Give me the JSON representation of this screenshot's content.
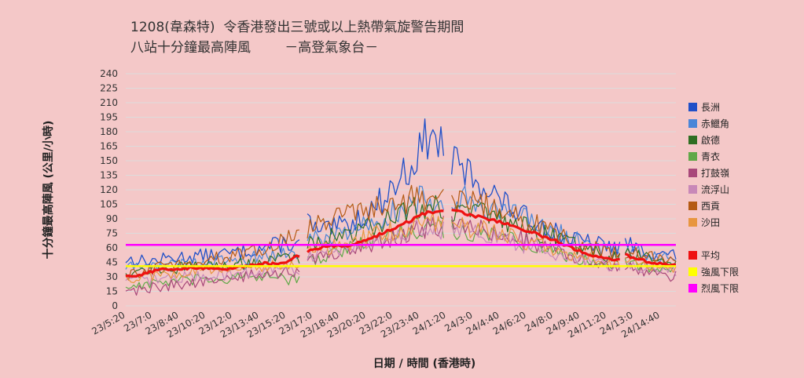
{
  "title_line1": "1208(韋森特)  令香港發出三號或以上熱帶氣旋警告期間",
  "title_line2": "八站十分鐘最高陣風        －高登氣象台－",
  "chart_data": {
    "type": "line",
    "xlabel": "日期 / 時間 (香港時)",
    "ylabel": "十分鐘最高陣風 (公里/小時)",
    "ylim": [
      0,
      240
    ],
    "yticks": [
      0,
      15,
      30,
      45,
      60,
      75,
      90,
      105,
      120,
      135,
      150,
      165,
      180,
      195,
      210,
      225,
      240
    ],
    "xlim": [
      0,
      34.3
    ],
    "xticks": [
      {
        "label": "23/5:20",
        "t": 0
      },
      {
        "label": "23/7:0",
        "t": 1.667
      },
      {
        "label": "23/8:40",
        "t": 3.333
      },
      {
        "label": "23/10:20",
        "t": 5
      },
      {
        "label": "23/12:0",
        "t": 6.667
      },
      {
        "label": "23/13:40",
        "t": 8.333
      },
      {
        "label": "23/15:20",
        "t": 10
      },
      {
        "label": "23/17:0",
        "t": 11.667
      },
      {
        "label": "23/18:40",
        "t": 13.333
      },
      {
        "label": "23/20:20",
        "t": 15
      },
      {
        "label": "23/22:0",
        "t": 16.667
      },
      {
        "label": "23/23:40",
        "t": 18.333
      },
      {
        "label": "24/1:20",
        "t": 20
      },
      {
        "label": "24/3:0",
        "t": 21.667
      },
      {
        "label": "24/4:40",
        "t": 23.333
      },
      {
        "label": "24/6:20",
        "t": 25
      },
      {
        "label": "24/8:0",
        "t": 26.667
      },
      {
        "label": "24/9:40",
        "t": 28.333
      },
      {
        "label": "24/11:20",
        "t": 30
      },
      {
        "label": "24/13:0",
        "t": 31.667
      },
      {
        "label": "24/14:40",
        "t": 33.333
      }
    ],
    "gaps": [
      [
        10.9,
        11.2
      ],
      [
        19.9,
        20.15
      ],
      [
        30.9,
        31.1
      ]
    ],
    "series": [
      {
        "name": "長洲",
        "color": "#2050c8",
        "width": 1.3,
        "points": [
          [
            0,
            48
          ],
          [
            1.5,
            46
          ],
          [
            3,
            50
          ],
          [
            5,
            52
          ],
          [
            7,
            55
          ],
          [
            8.5,
            60
          ],
          [
            10,
            65
          ],
          [
            11,
            62
          ],
          [
            11.2,
            92
          ],
          [
            12,
            75
          ],
          [
            13,
            80
          ],
          [
            14,
            85
          ],
          [
            15,
            95
          ],
          [
            16,
            110
          ],
          [
            17,
            130
          ],
          [
            18,
            150
          ],
          [
            18.8,
            175
          ],
          [
            19.3,
            170
          ],
          [
            19.9,
            165
          ],
          [
            20.2,
            150
          ],
          [
            21,
            140
          ],
          [
            22,
            130
          ],
          [
            23,
            115
          ],
          [
            24,
            100
          ],
          [
            25,
            90
          ],
          [
            26,
            85
          ],
          [
            27,
            75
          ],
          [
            28,
            68
          ],
          [
            29,
            65
          ],
          [
            30,
            62
          ],
          [
            30.9,
            60
          ],
          [
            31.1,
            66
          ],
          [
            32,
            58
          ],
          [
            33,
            55
          ],
          [
            34.3,
            52
          ]
        ]
      },
      {
        "name": "赤鱲角",
        "color": "#4a86d8",
        "width": 1.2,
        "points": [
          [
            0,
            40
          ],
          [
            2,
            42
          ],
          [
            4,
            44
          ],
          [
            6,
            46
          ],
          [
            8,
            50
          ],
          [
            10,
            55
          ],
          [
            11,
            52
          ],
          [
            11.2,
            68
          ],
          [
            13,
            72
          ],
          [
            15,
            85
          ],
          [
            17,
            100
          ],
          [
            18.5,
            110
          ],
          [
            19.9,
            108
          ],
          [
            20.2,
            115
          ],
          [
            21.5,
            110
          ],
          [
            23,
            100
          ],
          [
            25,
            88
          ],
          [
            27,
            75
          ],
          [
            29,
            62
          ],
          [
            30.9,
            55
          ],
          [
            31.1,
            60
          ],
          [
            33,
            52
          ],
          [
            34.3,
            48
          ]
        ]
      },
      {
        "name": "啟德",
        "color": "#2f6e22",
        "width": 1.2,
        "points": [
          [
            0,
            35
          ],
          [
            2,
            38
          ],
          [
            4,
            40
          ],
          [
            6,
            42
          ],
          [
            8,
            45
          ],
          [
            10,
            50
          ],
          [
            11,
            48
          ],
          [
            11.2,
            65
          ],
          [
            13,
            72
          ],
          [
            15,
            80
          ],
          [
            17,
            95
          ],
          [
            18.5,
            105
          ],
          [
            19.9,
            100
          ],
          [
            20.2,
            100
          ],
          [
            22,
            95
          ],
          [
            24,
            85
          ],
          [
            26,
            75
          ],
          [
            28,
            62
          ],
          [
            30,
            52
          ],
          [
            30.9,
            50
          ],
          [
            31.1,
            54
          ],
          [
            33,
            48
          ],
          [
            34.3,
            45
          ]
        ]
      },
      {
        "name": "青衣",
        "color": "#60a848",
        "width": 1.2,
        "points": [
          [
            0,
            20
          ],
          [
            2,
            24
          ],
          [
            4,
            26
          ],
          [
            6,
            28
          ],
          [
            8,
            30
          ],
          [
            10,
            28
          ],
          [
            11,
            26
          ],
          [
            11.2,
            45
          ],
          [
            13,
            55
          ],
          [
            15,
            65
          ],
          [
            17,
            75
          ],
          [
            18.5,
            82
          ],
          [
            19.9,
            80
          ],
          [
            20.2,
            80
          ],
          [
            22,
            75
          ],
          [
            24,
            68
          ],
          [
            26,
            60
          ],
          [
            28,
            50
          ],
          [
            30,
            44
          ],
          [
            30.9,
            40
          ],
          [
            31.1,
            44
          ],
          [
            33,
            40
          ],
          [
            34.3,
            38
          ]
        ]
      },
      {
        "name": "打鼓嶺",
        "color": "#a8487a",
        "width": 1.2,
        "points": [
          [
            0,
            15
          ],
          [
            2,
            20
          ],
          [
            4,
            24
          ],
          [
            6,
            26
          ],
          [
            8,
            32
          ],
          [
            10,
            35
          ],
          [
            11,
            35
          ],
          [
            11.2,
            45
          ],
          [
            13,
            55
          ],
          [
            15,
            62
          ],
          [
            17,
            72
          ],
          [
            18.5,
            80
          ],
          [
            19.9,
            82
          ],
          [
            20.2,
            85
          ],
          [
            22,
            80
          ],
          [
            24,
            72
          ],
          [
            26,
            62
          ],
          [
            28,
            50
          ],
          [
            30,
            42
          ],
          [
            30.9,
            38
          ],
          [
            31.1,
            40
          ],
          [
            33,
            34
          ],
          [
            34.3,
            30
          ]
        ]
      },
      {
        "name": "流浮山",
        "color": "#c888b8",
        "width": 1.2,
        "points": [
          [
            0,
            25
          ],
          [
            2,
            28
          ],
          [
            4,
            30
          ],
          [
            6,
            32
          ],
          [
            8,
            35
          ],
          [
            10,
            38
          ],
          [
            11,
            36
          ],
          [
            11.2,
            50
          ],
          [
            13,
            58
          ],
          [
            15,
            65
          ],
          [
            17,
            74
          ],
          [
            18.5,
            80
          ],
          [
            19.9,
            78
          ],
          [
            20.2,
            78
          ],
          [
            22,
            74
          ],
          [
            24,
            66
          ],
          [
            26,
            58
          ],
          [
            28,
            48
          ],
          [
            30,
            42
          ],
          [
            30.9,
            40
          ],
          [
            31.1,
            42
          ],
          [
            33,
            38
          ],
          [
            34.3,
            35
          ]
        ]
      },
      {
        "name": "西貢",
        "color": "#b45a14",
        "width": 1.2,
        "points": [
          [
            0,
            30
          ],
          [
            2,
            40
          ],
          [
            4,
            45
          ],
          [
            6,
            50
          ],
          [
            8,
            55
          ],
          [
            10,
            70
          ],
          [
            11,
            72
          ],
          [
            11.2,
            80
          ],
          [
            13,
            90
          ],
          [
            15,
            100
          ],
          [
            17,
            108
          ],
          [
            18.5,
            112
          ],
          [
            19.9,
            110
          ],
          [
            20.2,
            110
          ],
          [
            22,
            105
          ],
          [
            24,
            95
          ],
          [
            26,
            82
          ],
          [
            28,
            65
          ],
          [
            30,
            55
          ],
          [
            30.9,
            52
          ],
          [
            31.1,
            56
          ],
          [
            33,
            50
          ],
          [
            34.3,
            48
          ]
        ]
      },
      {
        "name": "沙田",
        "color": "#e89640",
        "width": 1.2,
        "points": [
          [
            0,
            28
          ],
          [
            2,
            32
          ],
          [
            4,
            35
          ],
          [
            6,
            38
          ],
          [
            8,
            40
          ],
          [
            10,
            42
          ],
          [
            11,
            40
          ],
          [
            11.2,
            55
          ],
          [
            13,
            62
          ],
          [
            15,
            70
          ],
          [
            17,
            80
          ],
          [
            18.5,
            88
          ],
          [
            19.9,
            85
          ],
          [
            20.2,
            85
          ],
          [
            22,
            80
          ],
          [
            24,
            72
          ],
          [
            26,
            62
          ],
          [
            28,
            52
          ],
          [
            30,
            45
          ],
          [
            30.9,
            44
          ],
          [
            31.1,
            46
          ],
          [
            33,
            42
          ],
          [
            34.3,
            40
          ]
        ]
      },
      {
        "name": "平均",
        "color": "#ee1111",
        "width": 3.2,
        "points": [
          [
            0,
            30
          ],
          [
            1,
            33
          ],
          [
            2,
            37
          ],
          [
            3,
            38
          ],
          [
            4,
            39
          ],
          [
            5,
            39
          ],
          [
            6,
            38
          ],
          [
            7,
            40
          ],
          [
            8,
            42
          ],
          [
            8.5,
            44
          ],
          [
            9,
            43
          ],
          [
            10,
            45
          ],
          [
            10.5,
            50
          ],
          [
            10.9,
            52
          ],
          [
            11.2,
            55
          ],
          [
            12,
            60
          ],
          [
            13,
            62
          ],
          [
            14,
            63
          ],
          [
            15,
            68
          ],
          [
            16,
            75
          ],
          [
            17,
            82
          ],
          [
            18,
            90
          ],
          [
            18.5,
            95
          ],
          [
            19,
            97
          ],
          [
            19.5,
            96
          ],
          [
            19.9,
            98
          ],
          [
            20.15,
            100
          ],
          [
            21,
            96
          ],
          [
            22,
            92
          ],
          [
            23,
            88
          ],
          [
            24,
            84
          ],
          [
            25,
            78
          ],
          [
            26,
            72
          ],
          [
            27,
            66
          ],
          [
            28,
            58
          ],
          [
            28.5,
            55
          ],
          [
            29,
            53
          ],
          [
            30,
            49
          ],
          [
            30.9,
            48
          ],
          [
            31.1,
            53
          ],
          [
            32,
            48
          ],
          [
            33,
            44
          ],
          [
            34.3,
            42
          ]
        ]
      },
      {
        "name": "強風下限",
        "color": "#ffff00",
        "width": 2.5,
        "points": [
          [
            0,
            41
          ],
          [
            34.3,
            41
          ]
        ]
      },
      {
        "name": "烈風下限",
        "color": "#ff00ff",
        "width": 2.5,
        "points": [
          [
            0,
            63
          ],
          [
            34.3,
            63
          ]
        ]
      }
    ],
    "legend_position": "right"
  }
}
